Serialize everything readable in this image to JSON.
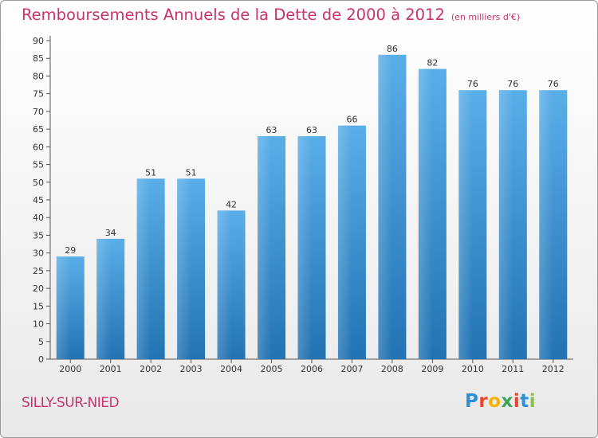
{
  "header": {
    "title": "Remboursements Annuels de la Dette de 2000 à 2012",
    "subtitle": "(en milliers d'€)"
  },
  "footer": {
    "commune": "SILLY-SUR-NIED",
    "logo_text": "Proxiti",
    "logo_colors": [
      "#2e8fd6",
      "#e8452c",
      "#f4b400",
      "#3aa655",
      "#e8452c",
      "#2e8fd6",
      "#8bc34a"
    ]
  },
  "colors": {
    "bar_light": "#5aaee8",
    "bar_dark": "#2373b3",
    "accent": "#c8336e"
  },
  "chart_data": {
    "type": "bar",
    "title": "Remboursements Annuels de la Dette de 2000 à 2012",
    "subtitle": "(en milliers d'€)",
    "categories": [
      "2000",
      "2001",
      "2002",
      "2003",
      "2004",
      "2005",
      "2006",
      "2007",
      "2008",
      "2009",
      "2010",
      "2011",
      "2012"
    ],
    "values": [
      29,
      34,
      51,
      51,
      42,
      63,
      63,
      66,
      86,
      82,
      76,
      76,
      76
    ],
    "xlabel": "",
    "ylabel": "",
    "ylim": [
      0,
      90
    ],
    "yticks": [
      0,
      5,
      10,
      15,
      20,
      25,
      30,
      35,
      40,
      45,
      50,
      55,
      60,
      65,
      70,
      75,
      80,
      85,
      90
    ],
    "grid": false,
    "legend": "none"
  }
}
